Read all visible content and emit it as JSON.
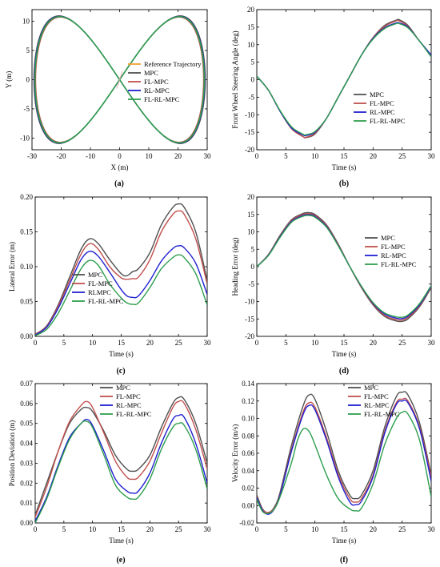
{
  "colors": {
    "Reference Trajectory": "#f0a030",
    "MPC": "#505050",
    "FL-MPC": "#c0504d",
    "RL-MPC": "#1f1fd0",
    "RLMPC": "#1f1fd0",
    "FL-RL-MPC": "#2e9e4f",
    "ref": "#e8a0b0"
  },
  "chart_data": [
    {
      "type": "line",
      "panel": "(a)",
      "xlabel": "X (m)",
      "ylabel": "Y (m)",
      "xlim": [
        -30,
        30
      ],
      "ylim": [
        -12,
        12
      ],
      "xticks": [
        -30,
        -20,
        -10,
        0,
        10,
        20,
        30
      ],
      "yticks": [
        -10,
        -5,
        0,
        5,
        10
      ],
      "legend": [
        "Reference Trajectory",
        "MPC",
        "FL-MPC",
        "RL-MPC",
        "FL-RL-MPC"
      ],
      "legend_position": "right",
      "shape": "figure-eight",
      "amp_x": 29,
      "amp_y": 10.8
    },
    {
      "type": "line",
      "panel": "(b)",
      "xlabel": "Time (s)",
      "ylabel": "Front Wheel Steering Angle (deg)",
      "xlim": [
        0,
        30
      ],
      "ylim": [
        -20,
        20
      ],
      "xticks": [
        0,
        5,
        10,
        15,
        20,
        25,
        30
      ],
      "yticks": [
        -20,
        -15,
        -10,
        -5,
        0,
        5,
        10,
        15,
        20
      ],
      "legend": [
        "MPC",
        "FL-MPC",
        "RL-MPC",
        "FL-RL-MPC"
      ],
      "legend_position": "bottom-right",
      "series": [
        {
          "name": "MPC",
          "x": [
            0,
            2,
            4,
            6,
            8,
            8.5,
            10,
            12,
            14,
            16,
            18,
            20,
            22,
            24,
            24.5,
            26,
            28,
            30
          ],
          "y": [
            1,
            -3,
            -9,
            -14,
            -16.3,
            -16.5,
            -15.5,
            -11,
            -5,
            1,
            7,
            12,
            15.5,
            17,
            17.1,
            15.5,
            11,
            7
          ]
        },
        {
          "name": "FL-MPC",
          "x": [
            0,
            2,
            4,
            6,
            8,
            8.5,
            10,
            12,
            14,
            16,
            18,
            20,
            22,
            24,
            24.5,
            26,
            28,
            30
          ],
          "y": [
            1,
            -3,
            -9,
            -14,
            -16.3,
            -16.4,
            -15.3,
            -11,
            -5,
            1,
            7,
            12,
            15.2,
            16.8,
            16.8,
            15.2,
            11,
            7
          ]
        },
        {
          "name": "RL-MPC",
          "x": [
            0,
            2,
            4,
            6,
            8,
            8.5,
            10,
            12,
            14,
            16,
            18,
            20,
            22,
            24,
            24.5,
            26,
            28,
            30
          ],
          "y": [
            1,
            -3,
            -9,
            -13.8,
            -15.8,
            -15.9,
            -15,
            -11,
            -5,
            1,
            7,
            11.8,
            14.8,
            16.2,
            16.2,
            15,
            11,
            7
          ]
        },
        {
          "name": "FL-RL-MPC",
          "x": [
            0,
            2,
            4,
            6,
            8,
            8.5,
            10,
            12,
            14,
            16,
            18,
            20,
            22,
            24,
            24.5,
            26,
            28,
            30
          ],
          "y": [
            1,
            -3,
            -8.8,
            -13.5,
            -15.6,
            -15.7,
            -14.8,
            -11,
            -5,
            1,
            7,
            11.6,
            14.6,
            16,
            16,
            14.8,
            11,
            6.5
          ]
        }
      ]
    },
    {
      "type": "line",
      "panel": "(c)",
      "xlabel": "Time (s)",
      "ylabel": "Lateral Error (m)",
      "xlim": [
        0,
        30
      ],
      "ylim": [
        0,
        0.2
      ],
      "xticks": [
        0,
        5,
        10,
        15,
        20,
        25,
        30
      ],
      "yticks": [
        "0.00",
        "0.05",
        "0.10",
        "0.15",
        "0.20"
      ],
      "legend": [
        "MPC",
        "FL-MPC",
        "RLMPC",
        "FL-RL-MPC"
      ],
      "legend_position": "bottom-left",
      "series": [
        {
          "name": "MPC",
          "x": [
            0,
            2,
            4,
            6,
            8,
            9.5,
            11,
            13,
            15,
            16,
            17,
            18,
            20,
            22,
            24,
            25,
            26,
            28,
            30
          ],
          "y": [
            0.003,
            0.015,
            0.045,
            0.085,
            0.125,
            0.14,
            0.133,
            0.11,
            0.09,
            0.087,
            0.093,
            0.097,
            0.12,
            0.16,
            0.185,
            0.19,
            0.185,
            0.15,
            0.08
          ]
        },
        {
          "name": "FL-MPC",
          "x": [
            0,
            2,
            4,
            6,
            8,
            9.5,
            11,
            13,
            15,
            16,
            17,
            18,
            20,
            22,
            24,
            25,
            26,
            28,
            30
          ],
          "y": [
            0.003,
            0.014,
            0.043,
            0.08,
            0.118,
            0.133,
            0.125,
            0.1,
            0.084,
            0.082,
            0.083,
            0.085,
            0.11,
            0.15,
            0.175,
            0.18,
            0.175,
            0.14,
            0.075
          ]
        },
        {
          "name": "RLMPC",
          "x": [
            0,
            2,
            4,
            6,
            8,
            9.5,
            11,
            13,
            15,
            16,
            17,
            18,
            20,
            22,
            24,
            25,
            26,
            28,
            30
          ],
          "y": [
            0.002,
            0.013,
            0.04,
            0.075,
            0.11,
            0.122,
            0.115,
            0.092,
            0.067,
            0.058,
            0.056,
            0.058,
            0.08,
            0.108,
            0.126,
            0.13,
            0.127,
            0.105,
            0.06
          ]
        },
        {
          "name": "FL-RL-MPC",
          "x": [
            0,
            2,
            4,
            6,
            8,
            9.5,
            11,
            13,
            15,
            16,
            17,
            18,
            20,
            22,
            24,
            25,
            26,
            28,
            30
          ],
          "y": [
            0.001,
            0.01,
            0.033,
            0.065,
            0.097,
            0.109,
            0.102,
            0.075,
            0.055,
            0.048,
            0.046,
            0.048,
            0.07,
            0.097,
            0.113,
            0.117,
            0.113,
            0.09,
            0.045
          ]
        }
      ]
    },
    {
      "type": "line",
      "panel": "(d)",
      "xlabel": "Time (s)",
      "ylabel": "Heading Error (deg)",
      "xlim": [
        0,
        30
      ],
      "ylim": [
        -20,
        20
      ],
      "xticks": [
        0,
        5,
        10,
        15,
        20,
        25,
        30
      ],
      "yticks": [
        -20,
        -15,
        -10,
        -5,
        0,
        5,
        10,
        15,
        20
      ],
      "legend": [
        "MPC",
        "FL-MPC",
        "RL-MPC",
        "FL-RL-MPC"
      ],
      "legend_position": "top-right",
      "series": [
        {
          "name": "MPC",
          "x": [
            0,
            2,
            4,
            6,
            8,
            9,
            10,
            12,
            14,
            16,
            18,
            20,
            22,
            24,
            25,
            26,
            28,
            30
          ],
          "y": [
            0,
            3.5,
            9,
            13.5,
            15.3,
            15.5,
            15,
            12,
            6.5,
            0,
            -6,
            -11,
            -14.3,
            -15.6,
            -15.7,
            -15,
            -11.5,
            -6
          ]
        },
        {
          "name": "FL-MPC",
          "x": [
            0,
            2,
            4,
            6,
            8,
            9,
            10,
            12,
            14,
            16,
            18,
            20,
            22,
            24,
            25,
            26,
            28,
            30
          ],
          "y": [
            0,
            3.4,
            8.8,
            13.3,
            15,
            15.2,
            14.7,
            11.8,
            6.3,
            0,
            -5.9,
            -10.8,
            -14,
            -15.2,
            -15.3,
            -14.6,
            -11.2,
            -5.8
          ]
        },
        {
          "name": "RL-MPC",
          "x": [
            0,
            2,
            4,
            6,
            8,
            9,
            10,
            12,
            14,
            16,
            18,
            20,
            22,
            24,
            25,
            26,
            28,
            30
          ],
          "y": [
            0,
            3.3,
            8.6,
            13,
            14.7,
            14.9,
            14.4,
            11.5,
            6.1,
            0,
            -5.7,
            -10.5,
            -13.6,
            -14.8,
            -14.9,
            -14.2,
            -10.9,
            -5.6
          ]
        },
        {
          "name": "FL-RL-MPC",
          "x": [
            0,
            2,
            4,
            6,
            8,
            9,
            10,
            12,
            14,
            16,
            18,
            20,
            22,
            24,
            25,
            26,
            28,
            30
          ],
          "y": [
            0,
            3.2,
            8.4,
            12.8,
            14.5,
            14.7,
            14.2,
            11.3,
            6,
            0,
            -5.6,
            -10.3,
            -13.3,
            -14.4,
            -14.5,
            -13.9,
            -10.6,
            -5.4
          ]
        }
      ]
    },
    {
      "type": "line",
      "panel": "(e)",
      "xlabel": "Time (s)",
      "ylabel": "Position Deviation (m)",
      "xlim": [
        0,
        30
      ],
      "ylim": [
        0,
        0.07
      ],
      "xticks": [
        0,
        5,
        10,
        15,
        20,
        25,
        30
      ],
      "yticks": [
        "0.00",
        "0.01",
        "0.02",
        "0.03",
        "0.04",
        "0.05",
        "0.06",
        "0.07"
      ],
      "legend": [
        "MPC",
        "FL-MPC",
        "RL-MPC",
        "FL-RL-MPC"
      ],
      "legend_position": "top-center",
      "series": [
        {
          "name": "MPC",
          "x": [
            0,
            2,
            4,
            6,
            8,
            9,
            10,
            12,
            14,
            16,
            17,
            18,
            20,
            22,
            24,
            25,
            26,
            28,
            30
          ],
          "y": [
            0.004,
            0.02,
            0.036,
            0.05,
            0.057,
            0.058,
            0.056,
            0.046,
            0.034,
            0.027,
            0.026,
            0.027,
            0.034,
            0.048,
            0.06,
            0.063,
            0.062,
            0.05,
            0.03
          ]
        },
        {
          "name": "FL-MPC",
          "x": [
            0,
            2,
            4,
            6,
            8,
            9,
            10,
            12,
            14,
            16,
            17,
            18,
            20,
            22,
            24,
            25,
            26,
            28,
            30
          ],
          "y": [
            0.003,
            0.018,
            0.036,
            0.051,
            0.059,
            0.061,
            0.058,
            0.045,
            0.031,
            0.023,
            0.022,
            0.023,
            0.031,
            0.045,
            0.058,
            0.061,
            0.06,
            0.047,
            0.027
          ]
        },
        {
          "name": "RL-MPC",
          "x": [
            0,
            2,
            4,
            6,
            8,
            9,
            10,
            12,
            14,
            16,
            17,
            18,
            20,
            22,
            24,
            25,
            26,
            28,
            30
          ],
          "y": [
            0.001,
            0.013,
            0.029,
            0.043,
            0.05,
            0.052,
            0.049,
            0.036,
            0.022,
            0.016,
            0.015,
            0.016,
            0.025,
            0.04,
            0.052,
            0.054,
            0.053,
            0.04,
            0.02
          ]
        },
        {
          "name": "FL-RL-MPC",
          "x": [
            0,
            2,
            4,
            6,
            8,
            9,
            10,
            12,
            14,
            16,
            17,
            18,
            20,
            22,
            24,
            25,
            26,
            28,
            30
          ],
          "y": [
            0,
            0.012,
            0.028,
            0.042,
            0.05,
            0.051,
            0.048,
            0.034,
            0.019,
            0.013,
            0.012,
            0.013,
            0.022,
            0.037,
            0.048,
            0.05,
            0.049,
            0.037,
            0.017
          ]
        }
      ]
    },
    {
      "type": "line",
      "panel": "(f)",
      "xlabel": "Time (s)",
      "ylabel": "Velocity Error (m/s)",
      "xlim": [
        0,
        30
      ],
      "ylim": [
        -0.02,
        0.14
      ],
      "xticks": [
        0,
        5,
        10,
        15,
        20,
        25,
        30
      ],
      "yticks": [
        "-0.02",
        "0.00",
        "0.02",
        "0.04",
        "0.06",
        "0.08",
        "0.10",
        "0.12",
        "0.14"
      ],
      "legend": [
        "MPC",
        "FL-MPC",
        "RL-MPC",
        "FL-RL-MPC"
      ],
      "legend_position": "top-center",
      "series": [
        {
          "name": "MPC",
          "x": [
            0,
            1,
            2,
            3,
            4,
            6,
            8,
            9,
            10,
            12,
            14,
            16,
            17,
            18,
            20,
            22,
            24,
            25,
            26,
            28,
            30
          ],
          "y": [
            0.012,
            -0.004,
            -0.008,
            -0.002,
            0.015,
            0.07,
            0.115,
            0.127,
            0.122,
            0.085,
            0.04,
            0.012,
            0.008,
            0.012,
            0.04,
            0.09,
            0.125,
            0.13,
            0.127,
            0.095,
            0.035
          ]
        },
        {
          "name": "FL-MPC",
          "x": [
            0,
            1,
            2,
            3,
            4,
            6,
            8,
            9,
            10,
            12,
            14,
            16,
            17,
            18,
            20,
            22,
            24,
            25,
            26,
            28,
            30
          ],
          "y": [
            0.01,
            -0.005,
            -0.008,
            -0.003,
            0.013,
            0.065,
            0.108,
            0.118,
            0.113,
            0.078,
            0.036,
            0.008,
            0.004,
            0.008,
            0.035,
            0.085,
            0.118,
            0.122,
            0.12,
            0.09,
            0.033
          ]
        },
        {
          "name": "RL-MPC",
          "x": [
            0,
            1,
            2,
            3,
            4,
            6,
            8,
            9,
            10,
            12,
            14,
            16,
            17,
            18,
            20,
            22,
            24,
            25,
            26,
            28,
            30
          ],
          "y": [
            0.009,
            -0.006,
            -0.01,
            -0.004,
            0.012,
            0.063,
            0.105,
            0.115,
            0.11,
            0.075,
            0.033,
            0.004,
            0.001,
            0.005,
            0.033,
            0.083,
            0.116,
            0.12,
            0.118,
            0.088,
            0.028
          ]
        },
        {
          "name": "FL-RL-MPC",
          "x": [
            0,
            1,
            2,
            3,
            4,
            6,
            7,
            8,
            9,
            10,
            12,
            14,
            16,
            17,
            18,
            20,
            22,
            24,
            25,
            26,
            28,
            30
          ],
          "y": [
            0.007,
            -0.007,
            -0.009,
            -0.004,
            0.01,
            0.05,
            0.075,
            0.088,
            0.085,
            0.07,
            0.035,
            0.008,
            -0.004,
            -0.006,
            -0.003,
            0.025,
            0.07,
            0.1,
            0.107,
            0.105,
            0.075,
            0.01
          ]
        }
      ]
    }
  ]
}
